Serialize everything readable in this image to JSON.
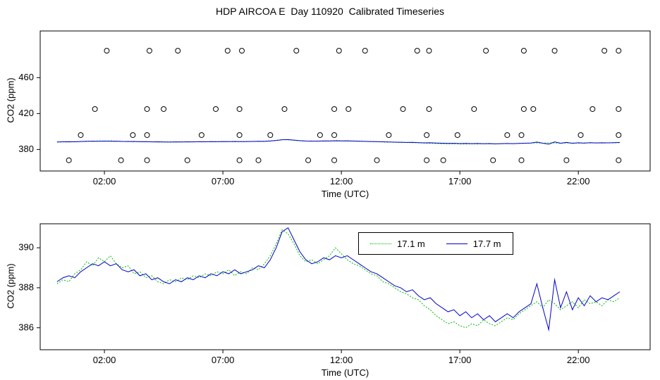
{
  "title": "HDP AIRCOA E  Day 110920  Calibrated Timeseries",
  "colors": {
    "green": "#00BB00",
    "blue": "#0000CC",
    "axis": "#000000",
    "background": "#FFFFFF"
  },
  "series": {
    "t_start": 0,
    "t_step": 0.25,
    "m17_1": [
      388.2,
      388.4,
      388.3,
      388.7,
      388.9,
      389.3,
      389.1,
      389.5,
      389.3,
      389.6,
      389.2,
      389.0,
      389.1,
      388.7,
      388.8,
      388.5,
      388.6,
      388.3,
      388.2,
      388.4,
      388.3,
      388.5,
      388.4,
      388.6,
      388.5,
      388.7,
      388.6,
      388.8,
      388.7,
      388.9,
      388.6,
      388.8,
      388.7,
      389.0,
      388.9,
      389.2,
      389.6,
      390.2,
      390.9,
      390.7,
      390.2,
      389.6,
      389.3,
      389.4,
      389.2,
      389.4,
      389.6,
      390.0,
      389.7,
      389.4,
      389.2,
      389.1,
      388.9,
      388.7,
      388.6,
      388.3,
      388.2,
      388.0,
      387.8,
      387.7,
      387.5,
      387.4,
      387.1,
      386.9,
      386.6,
      386.4,
      386.2,
      386.3,
      386.1,
      386.0,
      386.2,
      386.1,
      386.4,
      386.2,
      386.1,
      386.3,
      386.5,
      386.4,
      386.7,
      386.9,
      387.1,
      387.3,
      387.0,
      387.4,
      387.2,
      386.9,
      387.1,
      387.3,
      387.0,
      387.4,
      387.2,
      387.3,
      387.1,
      387.4,
      387.3,
      387.5
    ],
    "m17_7": [
      388.3,
      388.5,
      388.6,
      388.5,
      388.8,
      389.0,
      389.2,
      389.1,
      389.3,
      389.1,
      389.2,
      388.9,
      388.8,
      388.9,
      388.6,
      388.7,
      388.4,
      388.5,
      388.3,
      388.2,
      388.4,
      388.3,
      388.5,
      388.4,
      388.6,
      388.5,
      388.7,
      388.6,
      388.8,
      388.7,
      388.9,
      388.7,
      388.8,
      388.9,
      389.1,
      389.0,
      389.4,
      390.0,
      390.8,
      391.0,
      390.4,
      389.8,
      389.4,
      389.2,
      389.3,
      389.5,
      389.4,
      389.6,
      389.5,
      389.6,
      389.4,
      389.2,
      389.0,
      388.8,
      388.7,
      388.5,
      388.3,
      388.1,
      388.0,
      387.8,
      387.9,
      387.6,
      387.4,
      387.5,
      387.2,
      387.0,
      386.8,
      386.9,
      386.6,
      386.8,
      386.5,
      386.7,
      386.4,
      386.6,
      386.3,
      386.5,
      386.7,
      386.5,
      386.8,
      387.0,
      387.2,
      388.2,
      387.0,
      385.9,
      388.4,
      387.0,
      387.8,
      386.9,
      387.5,
      387.1,
      387.6,
      387.3,
      387.5,
      387.4,
      387.6,
      387.8
    ]
  },
  "chart_data": [
    {
      "type": "scatter",
      "name": "calibration-panel",
      "ylabel": "CO2 (ppm)",
      "xlabel": "Time (UTC)",
      "ylim": [
        356,
        512
      ],
      "yticks": [
        380,
        420,
        460
      ],
      "xlim": [
        -0.71,
        25.03
      ],
      "xtick_hours": [
        2,
        7,
        12,
        17,
        22
      ],
      "xtick_labels": [
        "02:00",
        "07:00",
        "12:00",
        "17:00",
        "22:00"
      ],
      "scatter_groups": [
        {
          "value": 490,
          "times": [
            2.1,
            3.9,
            5.1,
            7.2,
            7.8,
            10.1,
            11.9,
            13.0,
            15.2,
            15.7,
            18.1,
            19.7,
            21.0,
            23.1,
            23.7
          ]
        },
        {
          "value": 425,
          "times": [
            1.6,
            3.8,
            4.5,
            6.7,
            7.7,
            9.6,
            11.7,
            12.3,
            14.6,
            15.7,
            17.6,
            19.7,
            20.1,
            22.6,
            23.7
          ]
        },
        {
          "value": 396,
          "times": [
            1.0,
            3.2,
            3.8,
            6.1,
            7.7,
            9.0,
            11.1,
            11.7,
            14.0,
            15.6,
            16.9,
            19.0,
            19.6,
            22.1,
            23.7
          ]
        },
        {
          "value": 368,
          "times": [
            0.5,
            2.7,
            3.8,
            5.5,
            7.7,
            8.5,
            10.6,
            11.7,
            13.5,
            15.6,
            16.3,
            18.4,
            19.6,
            21.5,
            23.7
          ]
        }
      ],
      "lines": [
        {
          "series": "m17_1",
          "color_key": "green",
          "style": "dotted"
        },
        {
          "series": "m17_7",
          "color_key": "blue",
          "style": "solid"
        }
      ]
    },
    {
      "type": "line",
      "name": "ambient-panel",
      "ylabel": "CO2 (ppm)",
      "xlabel": "Time (UTC)",
      "ylim": [
        384.9,
        391.2
      ],
      "yticks": [
        386,
        388,
        390
      ],
      "xlim": [
        -0.71,
        25.03
      ],
      "xtick_hours": [
        2,
        7,
        12,
        17,
        22
      ],
      "xtick_labels": [
        "02:00",
        "07:00",
        "12:00",
        "17:00",
        "22:00"
      ],
      "lines": [
        {
          "series": "m17_1",
          "color_key": "green",
          "style": "dotted"
        },
        {
          "series": "m17_7",
          "color_key": "blue",
          "style": "solid"
        }
      ],
      "legend": [
        {
          "label": "17.1 m",
          "color_key": "green",
          "style": "dotted"
        },
        {
          "label": "17.7 m",
          "color_key": "blue",
          "style": "solid"
        }
      ]
    }
  ]
}
